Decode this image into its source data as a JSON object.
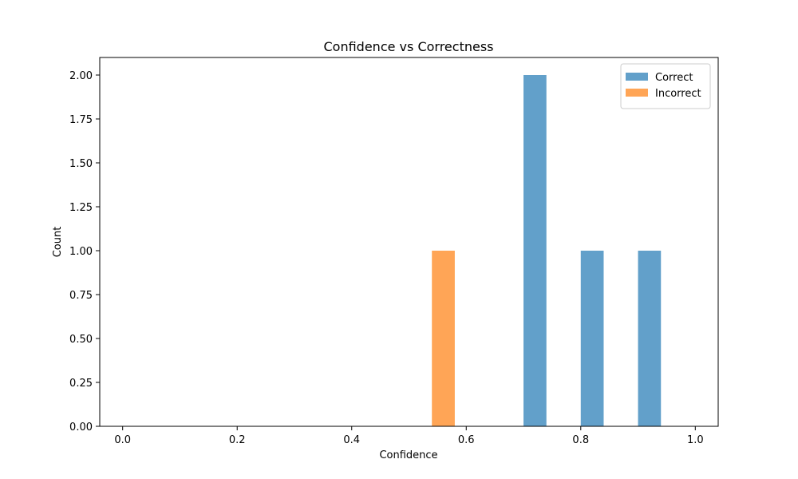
{
  "chart_data": {
    "type": "bar",
    "title": "Confidence vs Correctness",
    "xlabel": "Confidence",
    "ylabel": "Count",
    "xlim": [
      -0.04,
      1.04
    ],
    "ylim": [
      0,
      2.1
    ],
    "xticks": [
      0.0,
      0.2,
      0.4,
      0.6,
      0.8,
      1.0
    ],
    "xtick_labels": [
      "0.0",
      "0.2",
      "0.4",
      "0.6",
      "0.8",
      "1.0"
    ],
    "yticks": [
      0.0,
      0.25,
      0.5,
      0.75,
      1.0,
      1.25,
      1.5,
      1.75,
      2.0
    ],
    "ytick_labels": [
      "0.00",
      "0.25",
      "0.50",
      "0.75",
      "1.00",
      "1.25",
      "1.50",
      "1.75",
      "2.00"
    ],
    "grid": false,
    "legend_position": "top-right",
    "series": [
      {
        "name": "Correct",
        "color": "#1f77b4",
        "opacity": 0.7,
        "bins": [
          {
            "x0": 0.7,
            "x1": 0.74,
            "value": 2
          },
          {
            "x0": 0.8,
            "x1": 0.84,
            "value": 1
          },
          {
            "x0": 0.9,
            "x1": 0.94,
            "value": 1
          }
        ]
      },
      {
        "name": "Incorrect",
        "color": "#ff7f0e",
        "opacity": 0.7,
        "bins": [
          {
            "x0": 0.54,
            "x1": 0.58,
            "value": 1
          }
        ]
      }
    ]
  }
}
